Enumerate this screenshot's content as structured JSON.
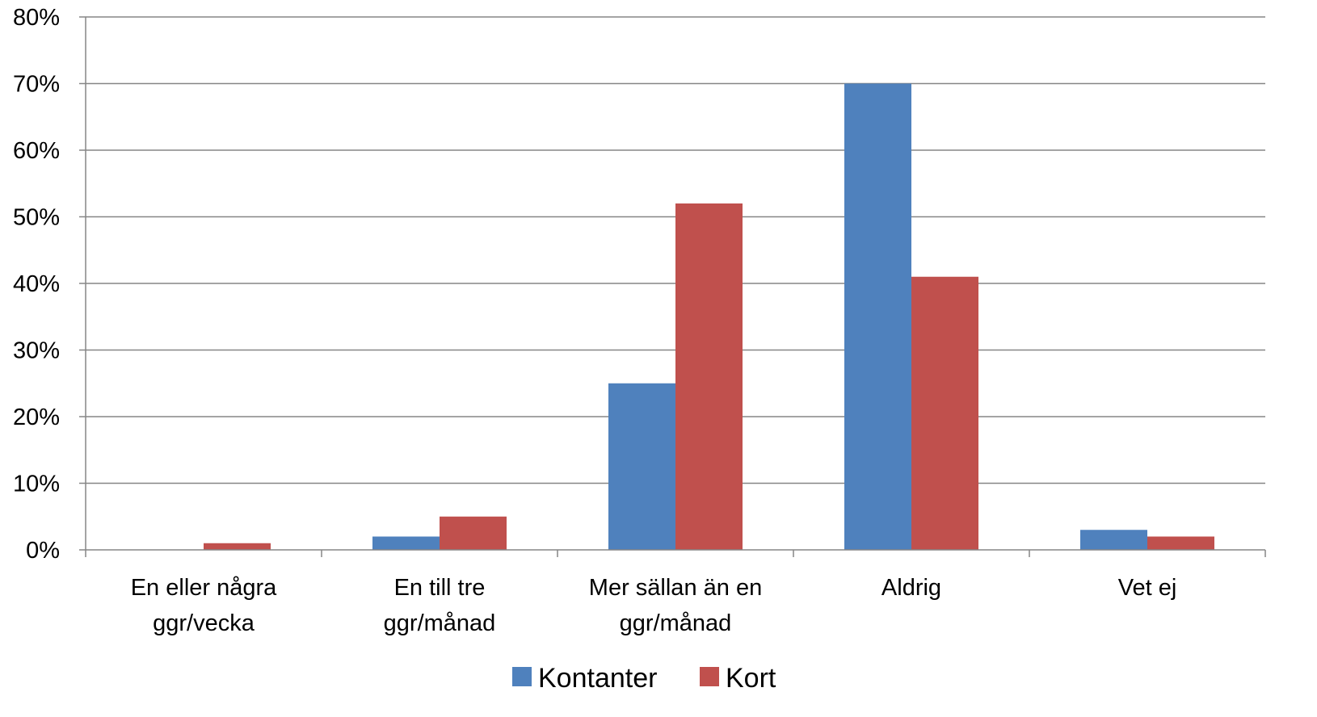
{
  "chart_data": {
    "type": "bar",
    "categories": [
      [
        "En eller några",
        "ggr/vecka"
      ],
      [
        "En till tre",
        "ggr/månad"
      ],
      [
        "Mer sällan än en",
        "ggr/månad"
      ],
      [
        "Aldrig"
      ],
      [
        "Vet ej"
      ]
    ],
    "series": [
      {
        "name": "Kontanter",
        "color": "#4F81BD",
        "values": [
          0,
          2,
          25,
          70,
          3
        ]
      },
      {
        "name": "Kort",
        "color": "#C0504D",
        "values": [
          1,
          5,
          52,
          41,
          2
        ]
      }
    ],
    "ylim": [
      0,
      80
    ],
    "y_ticks": [
      0,
      10,
      20,
      30,
      40,
      50,
      60,
      70,
      80
    ],
    "y_tick_labels": [
      "0%",
      "10%",
      "20%",
      "30%",
      "40%",
      "50%",
      "60%",
      "70%",
      "80%"
    ],
    "grid": true,
    "legend_position": "bottom"
  }
}
